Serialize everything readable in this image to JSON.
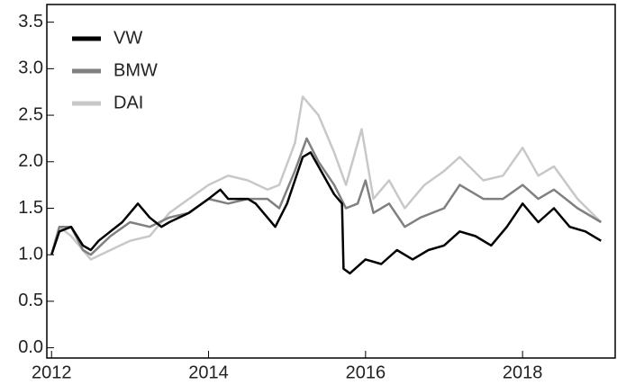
{
  "chart_data": {
    "type": "line",
    "series": [
      {
        "name": "VW",
        "color": "#000000",
        "x": [
          2012.0,
          2012.1,
          2012.25,
          2012.4,
          2012.5,
          2012.6,
          2012.75,
          2012.9,
          2013.0,
          2013.1,
          2013.25,
          2013.4,
          2013.5,
          2013.75,
          2014.0,
          2014.15,
          2014.25,
          2014.5,
          2014.6,
          2014.75,
          2014.85,
          2015.0,
          2015.1,
          2015.2,
          2015.3,
          2015.5,
          2015.6,
          2015.7,
          2015.72,
          2015.8,
          2016.0,
          2016.2,
          2016.4,
          2016.6,
          2016.8,
          2017.0,
          2017.2,
          2017.4,
          2017.6,
          2017.8,
          2018.0,
          2018.2,
          2018.4,
          2018.6,
          2018.8,
          2019.0
        ],
        "values": [
          1.0,
          1.25,
          1.3,
          1.1,
          1.05,
          1.15,
          1.25,
          1.35,
          1.45,
          1.55,
          1.4,
          1.3,
          1.35,
          1.45,
          1.6,
          1.7,
          1.6,
          1.6,
          1.55,
          1.4,
          1.3,
          1.55,
          1.8,
          2.05,
          2.1,
          1.8,
          1.65,
          1.55,
          0.85,
          0.8,
          0.95,
          0.9,
          1.05,
          0.95,
          1.05,
          1.1,
          1.25,
          1.2,
          1.1,
          1.3,
          1.55,
          1.35,
          1.5,
          1.3,
          1.25,
          1.15
        ]
      },
      {
        "name": "BMW",
        "color": "#808080",
        "x": [
          2012.0,
          2012.1,
          2012.25,
          2012.4,
          2012.5,
          2012.75,
          2013.0,
          2013.25,
          2013.5,
          2013.75,
          2014.0,
          2014.25,
          2014.5,
          2014.75,
          2014.9,
          2015.1,
          2015.25,
          2015.4,
          2015.6,
          2015.75,
          2015.9,
          2016.0,
          2016.1,
          2016.3,
          2016.5,
          2016.7,
          2017.0,
          2017.2,
          2017.5,
          2017.75,
          2018.0,
          2018.2,
          2018.4,
          2018.7,
          2019.0
        ],
        "values": [
          1.0,
          1.3,
          1.3,
          1.05,
          1.0,
          1.2,
          1.35,
          1.3,
          1.4,
          1.45,
          1.6,
          1.55,
          1.6,
          1.6,
          1.5,
          1.9,
          2.25,
          2.0,
          1.75,
          1.5,
          1.55,
          1.8,
          1.45,
          1.55,
          1.3,
          1.4,
          1.5,
          1.75,
          1.6,
          1.6,
          1.75,
          1.6,
          1.7,
          1.5,
          1.35
        ]
      },
      {
        "name": "DAI",
        "color": "#c8c8c8",
        "x": [
          2012.0,
          2012.1,
          2012.25,
          2012.5,
          2012.75,
          2013.0,
          2013.25,
          2013.5,
          2013.75,
          2014.0,
          2014.25,
          2014.5,
          2014.75,
          2014.9,
          2015.1,
          2015.2,
          2015.4,
          2015.6,
          2015.75,
          2015.95,
          2016.1,
          2016.3,
          2016.5,
          2016.75,
          2017.0,
          2017.2,
          2017.5,
          2017.75,
          2018.0,
          2018.2,
          2018.4,
          2018.7,
          2019.0
        ],
        "values": [
          1.0,
          1.3,
          1.2,
          0.95,
          1.05,
          1.15,
          1.2,
          1.45,
          1.6,
          1.75,
          1.85,
          1.8,
          1.7,
          1.75,
          2.2,
          2.7,
          2.5,
          2.1,
          1.75,
          2.35,
          1.6,
          1.8,
          1.5,
          1.75,
          1.9,
          2.05,
          1.8,
          1.85,
          2.15,
          1.85,
          1.95,
          1.6,
          1.35
        ]
      }
    ],
    "xlim": [
      2011.94,
      2019.18
    ],
    "xticks": [
      2012,
      2014,
      2016,
      2018
    ],
    "ylim": [
      -0.11,
      3.69
    ],
    "yticks": [
      {
        "value": 0,
        "label": "0.0"
      },
      0.5,
      {
        "value": 1,
        "label": "1.0"
      },
      1.5,
      {
        "value": 2,
        "label": "2.0"
      },
      2.5,
      {
        "value": 3,
        "label": "3.0"
      },
      3.5
    ],
    "legend": "top-left"
  }
}
